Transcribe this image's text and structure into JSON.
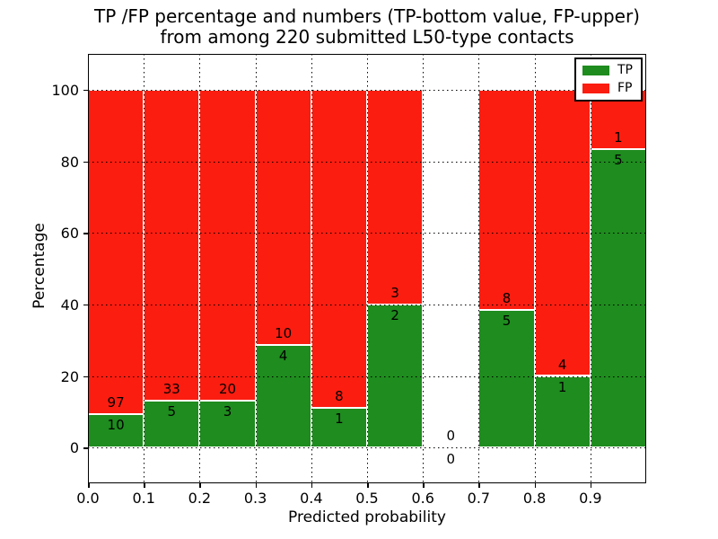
{
  "figure": {
    "title_line1": "TP /FP percentage and numbers (TP-bottom value, FP-upper)",
    "title_line2": "from among 220 submitted L50-type contacts"
  },
  "axes": {
    "xlabel": "Predicted probability",
    "ylabel": "Percentage"
  },
  "legend": {
    "position": "upper right",
    "items": [
      {
        "label": "TP",
        "color": "#1e8c1e"
      },
      {
        "label": "FP",
        "color": "#fb1d10"
      }
    ]
  },
  "chart_data": {
    "type": "bar",
    "subtype": "stacked-percentage-histogram",
    "title": "TP /FP percentage and numbers (TP-bottom value, FP-upper) from among 220 submitted L50-type contacts",
    "xlabel": "Predicted probability",
    "ylabel": "Percentage",
    "total_contacts": 220,
    "xlim": [
      0.0,
      1.0
    ],
    "ylim": [
      -10,
      110
    ],
    "xticks": [
      0.0,
      0.1,
      0.2,
      0.3,
      0.4,
      0.5,
      0.6,
      0.7,
      0.8,
      0.9
    ],
    "xtick_labels": [
      "0.0",
      "0.1",
      "0.2",
      "0.3",
      "0.4",
      "0.5",
      "0.6",
      "0.7",
      "0.8",
      "0.9"
    ],
    "yticks": [
      0,
      20,
      40,
      60,
      80,
      100
    ],
    "ytick_labels": [
      "0",
      "20",
      "40",
      "60",
      "80",
      "100"
    ],
    "bin_width": 0.1,
    "bin_starts": [
      0.0,
      0.1,
      0.2,
      0.3,
      0.4,
      0.5,
      0.6,
      0.7,
      0.8,
      0.9
    ],
    "grid": "dotted",
    "bar_edge_color": "#ffffff",
    "legend_position": "upper right",
    "series": [
      {
        "name": "TP",
        "color": "#1e8c1e",
        "counts": [
          10,
          5,
          3,
          4,
          1,
          2,
          0,
          5,
          1,
          5
        ]
      },
      {
        "name": "FP",
        "color": "#fb1d10",
        "counts": [
          97,
          33,
          20,
          10,
          8,
          3,
          0,
          8,
          4,
          1
        ]
      }
    ],
    "tp_percent_of_bin": [
      9.3,
      13.2,
      13.0,
      28.6,
      11.1,
      40.0,
      null,
      38.5,
      20.0,
      83.3
    ]
  }
}
